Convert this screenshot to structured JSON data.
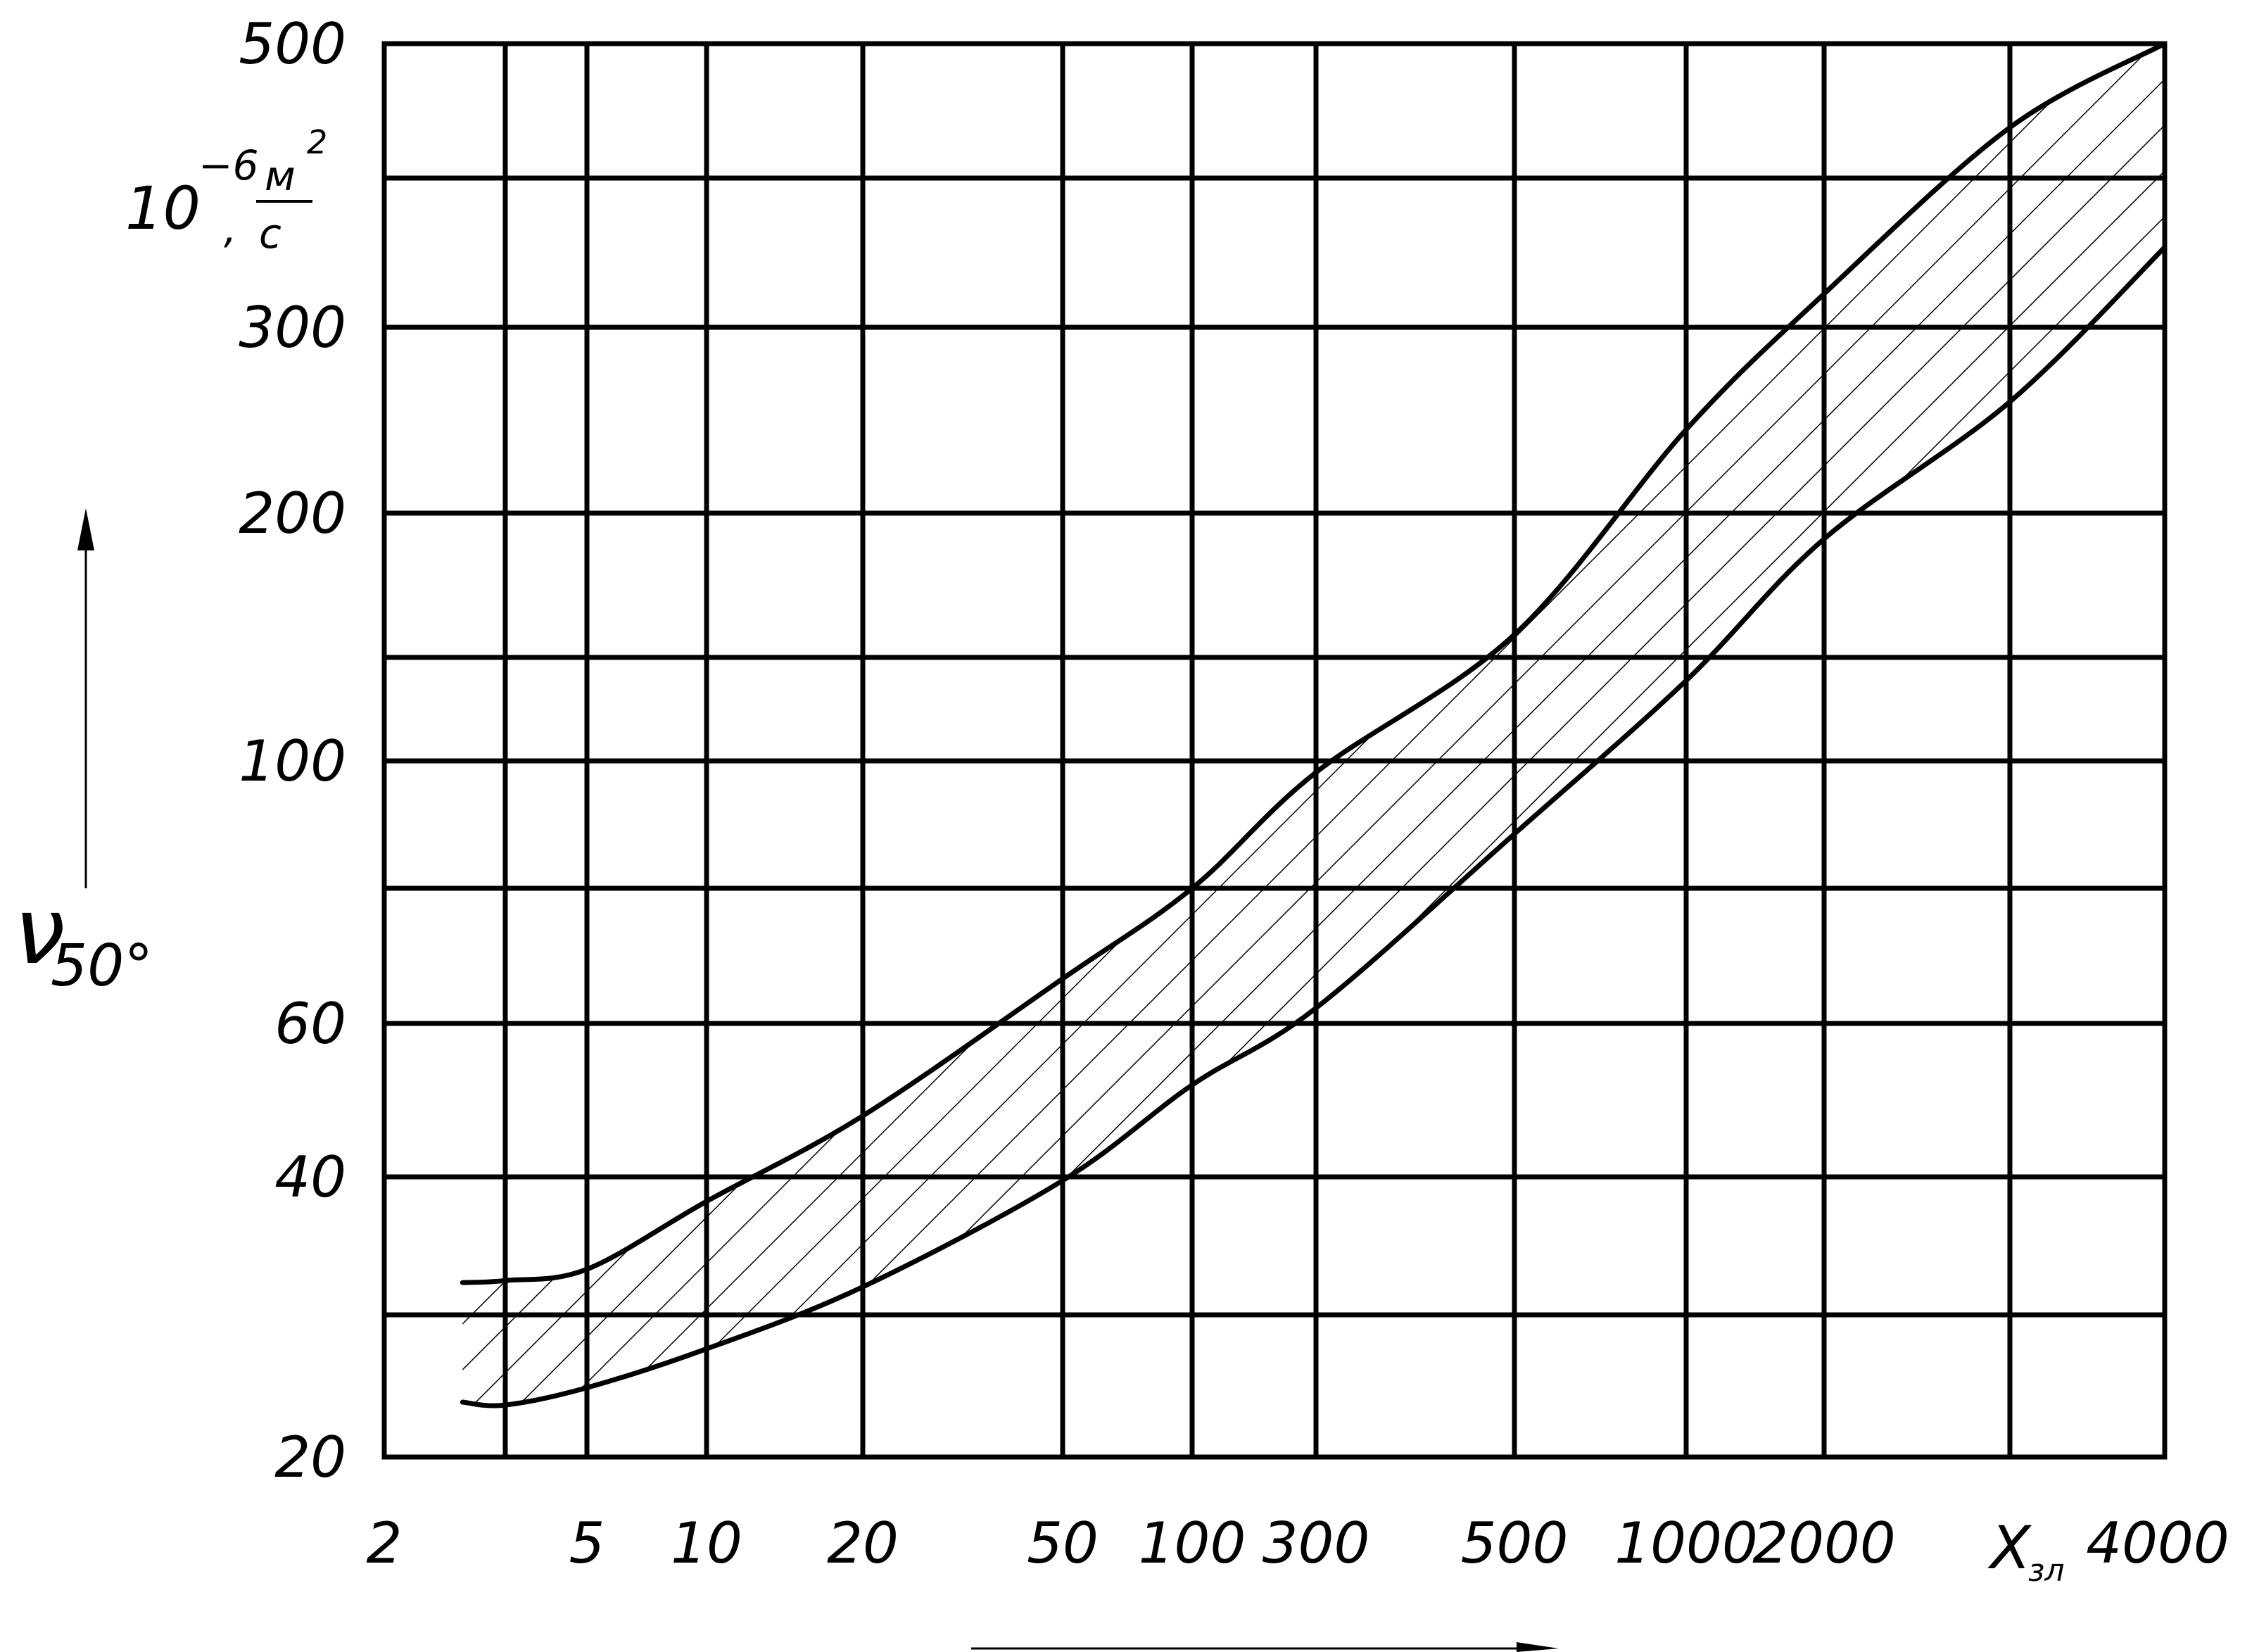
{
  "chart_data": {
    "type": "area",
    "title": "",
    "xlabel": "X",
    "xlabel_subscript": "зл",
    "ylabel": "ν",
    "ylabel_subscript": "50°",
    "y_unit_prefix": "10",
    "y_unit_exponent": "−6",
    "y_unit_numerator": "м",
    "y_unit_numerator_exponent": "2",
    "y_unit_separator": ",",
    "y_unit_denominator": "с",
    "x_scale": "log (nonuniform)",
    "y_scale": "log (nonuniform)",
    "grid": true,
    "fill": "hatched band",
    "x_ticks": [
      2,
      3,
      5,
      10,
      20,
      50,
      100,
      300,
      500,
      1000,
      2000,
      3000,
      4000
    ],
    "x_tick_labels": [
      "2",
      "",
      "5",
      "10",
      "20",
      "50",
      "100",
      "300",
      "500",
      "1000",
      "2000",
      "",
      "4000"
    ],
    "y_ticks": [
      20,
      25,
      40,
      60,
      80,
      100,
      150,
      200,
      300,
      400,
      500
    ],
    "y_tick_labels": [
      "20",
      "",
      "40",
      "60",
      "",
      "100",
      "",
      "200",
      "300",
      "",
      "500"
    ],
    "xlim": [
      2,
      4000
    ],
    "ylim": [
      20,
      500
    ],
    "series": [
      {
        "name": "",
        "role": "upper boundary",
        "points": [
          {
            "x": 2.6,
            "y": 27.9
          },
          {
            "x": 3,
            "y": 28.1
          },
          {
            "x": 5,
            "y": 29.2
          },
          {
            "x": 10,
            "y": 36.8
          },
          {
            "x": 20,
            "y": 47
          },
          {
            "x": 50,
            "y": 66
          },
          {
            "x": 100,
            "y": 80
          },
          {
            "x": 300,
            "y": 98
          },
          {
            "x": 500,
            "y": 157
          },
          {
            "x": 1000,
            "y": 240
          },
          {
            "x": 2000,
            "y": 320
          },
          {
            "x": 3000,
            "y": 435
          },
          {
            "x": 4000,
            "y": 500
          }
        ]
      },
      {
        "name": "",
        "role": "lower boundary",
        "points": [
          {
            "x": 2.6,
            "y": 21.8
          },
          {
            "x": 3,
            "y": 21.7
          },
          {
            "x": 5,
            "y": 22.3
          },
          {
            "x": 10,
            "y": 23.7
          },
          {
            "x": 20,
            "y": 27.5
          },
          {
            "x": 50,
            "y": 39.5
          },
          {
            "x": 100,
            "y": 51
          },
          {
            "x": 300,
            "y": 62
          },
          {
            "x": 500,
            "y": 88
          },
          {
            "x": 1000,
            "y": 137
          },
          {
            "x": 2000,
            "y": 190
          },
          {
            "x": 3000,
            "y": 255
          },
          {
            "x": 4000,
            "y": 350
          }
        ]
      }
    ]
  }
}
